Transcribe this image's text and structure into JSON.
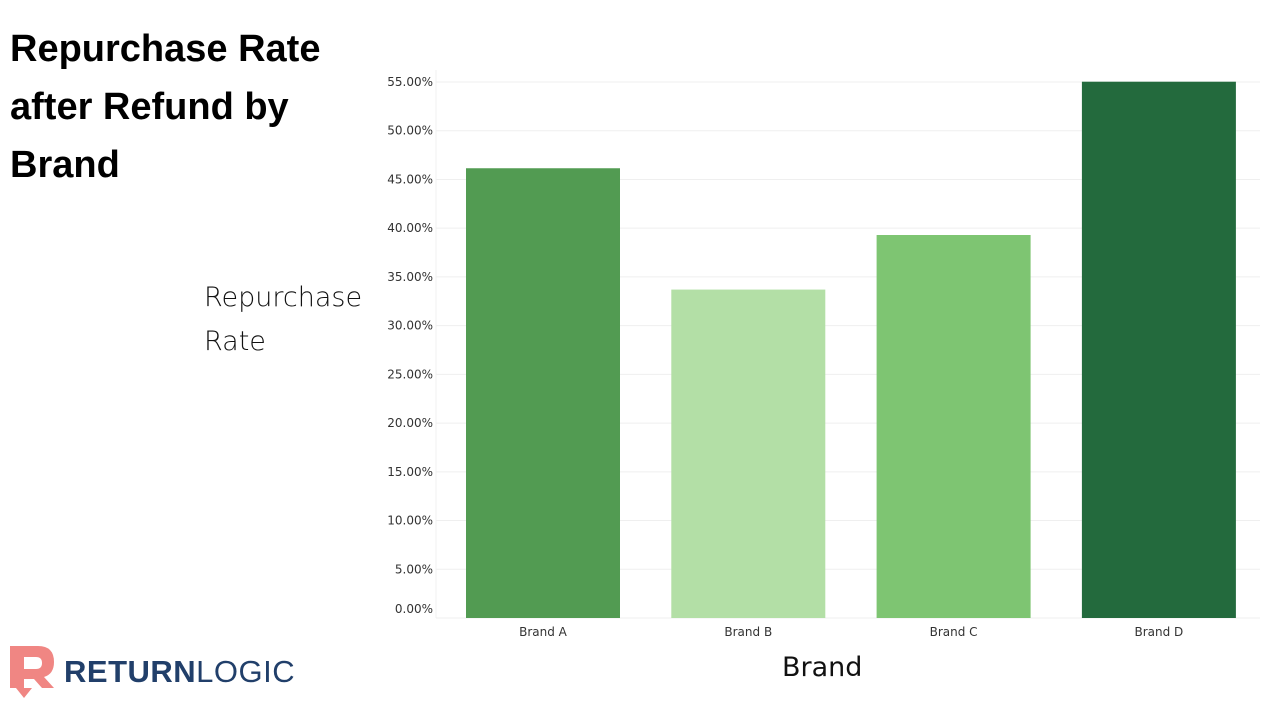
{
  "chart_data": {
    "type": "bar",
    "title": "Repurchase Rate after Refund by Brand",
    "xlabel": "Brand",
    "ylabel": "Repurchase Rate",
    "categories": [
      "Brand A",
      "Brand B",
      "Brand C",
      "Brand D"
    ],
    "values": [
      46.15,
      33.7,
      39.3,
      55.03
    ],
    "colors": [
      "#529b52",
      "#b3dfa6",
      "#7ec572",
      "#236a3d"
    ],
    "ylim": [
      0,
      55
    ],
    "yticks": [
      0,
      5,
      10,
      15,
      20,
      25,
      30,
      35,
      40,
      45,
      50,
      55
    ],
    "ytick_labels": [
      "0.00%",
      "5.00%",
      "10.00%",
      "15.00%",
      "20.00%",
      "25.00%",
      "30.00%",
      "35.00%",
      "40.00%",
      "45.00%",
      "50.00%",
      "55.00%"
    ],
    "grid": true,
    "legend": "none"
  },
  "logo": {
    "text_bold": "RETURN",
    "text_light": "LOGIC",
    "icon": "r-return-arrow-icon",
    "icon_color": "#f08683",
    "text_color": "#213f6a"
  }
}
